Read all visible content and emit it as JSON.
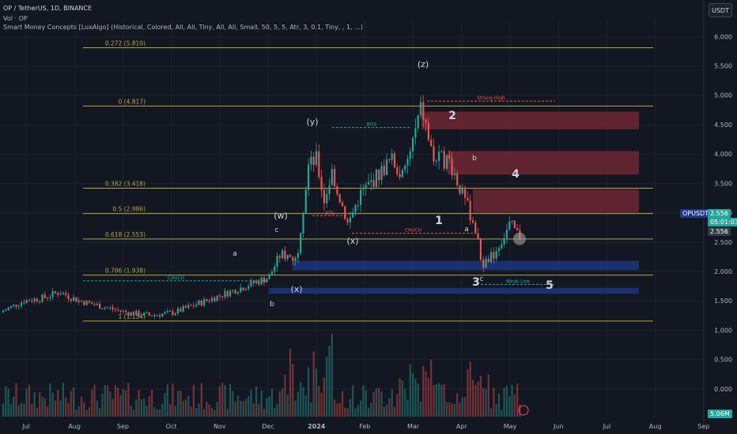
{
  "header": {
    "title": "OP / TetherUS, 1D, BINANCE",
    "volume_label": "Vol · OP",
    "indicator": "Smart Money Concepts [LuxAlgo] (Historical, Colored, All, All, Tiny, All, All, Small, 50, 5, 5, Atr, 3, 0.1, Tiny, , 1, ...)"
  },
  "currency_button": "USDT",
  "price_tags": {
    "symbol": "OPUSDT",
    "price": "2.556",
    "countdown": "05:01:03",
    "price2": "2.556",
    "volume": "5.06M"
  },
  "colors": {
    "background": "#131722",
    "bull": "#26a69a",
    "bear": "#ef5350",
    "fib": "#b5a642",
    "supply": "#7a2a35",
    "demand": "#1e3a8a"
  },
  "chart_data": {
    "type": "candlestick",
    "y_axis": {
      "ticks": [
        "6.000",
        "5.500",
        "5.000",
        "4.500",
        "4.000",
        "3.500",
        "3.000",
        "2.500",
        "2.000",
        "1.500",
        "1.000",
        "0.500",
        "0.000"
      ],
      "range": [
        -0.5,
        6.3
      ]
    },
    "x_axis": {
      "ticks": [
        "Jul",
        "Aug",
        "Sep",
        "Oct",
        "Nov",
        "Dec",
        "2024",
        "Feb",
        "Mar",
        "Apr",
        "May",
        "Jun",
        "Jul",
        "Aug",
        "Sep"
      ]
    },
    "fib_levels": [
      {
        "label": "0.272 (5.810)",
        "value": 5.81
      },
      {
        "label": "0 (4.817)",
        "value": 4.817
      },
      {
        "label": "0.382 (3.418)",
        "value": 3.418
      },
      {
        "label": "0.5 (2.986)",
        "value": 2.986
      },
      {
        "label": "0.618 (2.553)",
        "value": 2.553
      },
      {
        "label": "0.786 (1.938)",
        "value": 1.938
      },
      {
        "label": "1 (1.154)",
        "value": 1.154
      }
    ],
    "wave_labels": [
      {
        "text": "(z)",
        "x": "Mar",
        "price": 5.2
      },
      {
        "text": "(y)",
        "x": "Dec",
        "price": 4.25
      },
      {
        "text": "(w)",
        "x": "Dec",
        "price": 2.8
      },
      {
        "text": "(x)",
        "x": "Feb",
        "price": 2.3
      },
      {
        "text": "(x)",
        "x": "Dec",
        "price": 1.6
      },
      {
        "text": "1",
        "x": "Mar",
        "price": 2.63
      },
      {
        "text": "2",
        "x": "Mar",
        "price": 4.37
      },
      {
        "text": "3",
        "x": "Apr",
        "price": 1.7
      },
      {
        "text": "4",
        "x": "Apr",
        "price": 3.43
      },
      {
        "text": "5",
        "x": "May",
        "price": 1.63
      },
      {
        "text": "a",
        "x": "Nov",
        "price": 2.1
      },
      {
        "text": "b",
        "x": "Dec",
        "price": 1.3
      },
      {
        "text": "c",
        "x": "Dec",
        "price": 2.5
      },
      {
        "text": "a",
        "x": "Apr",
        "price": 2.5
      },
      {
        "text": "b",
        "x": "Apr",
        "price": 3.7
      },
      {
        "text": "c",
        "x": "Apr",
        "price": 1.8
      }
    ],
    "annotations": [
      "BOS",
      "CHoCH",
      "Strong High",
      "EQL",
      "EQH",
      "Weak Low"
    ]
  }
}
